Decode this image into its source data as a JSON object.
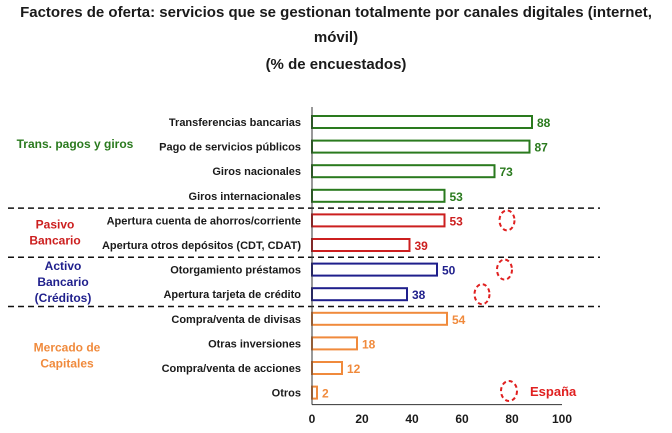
{
  "title_line1": "Factores de oferta: servicios que se gestionan totalmente por canales digitales (internet,",
  "title_line2": "móvil)",
  "subtitle": "(% de encuestados)",
  "colors": {
    "green": "#2a7a1e",
    "red": "#cc1f1f",
    "blue": "#1f1f8c",
    "orange": "#f08a3c",
    "spain": "#e02020"
  },
  "chart_data": {
    "type": "bar",
    "orientation": "horizontal",
    "xlim": [
      0,
      100
    ],
    "xticks": [
      0,
      20,
      40,
      60,
      80,
      100
    ],
    "grid": false,
    "legend": "España",
    "groups": [
      {
        "name": "Trans. pagos y giros",
        "color": "green",
        "items": [
          {
            "label": "Transferencias bancarias",
            "value": 88
          },
          {
            "label": "Pago de servicios públicos",
            "value": 87
          },
          {
            "label": "Giros nacionales",
            "value": 73
          },
          {
            "label": "Giros internacionales",
            "value": 53
          }
        ]
      },
      {
        "name": "Pasivo Bancario",
        "color": "red",
        "items": [
          {
            "label": "Apertura cuenta de ahorros/corriente",
            "value": 53,
            "spain": 78
          },
          {
            "label": "Apertura otros depósitos (CDT, CDAT)",
            "value": 39
          }
        ]
      },
      {
        "name": "Activo Bancario (Créditos)",
        "color": "blue",
        "items": [
          {
            "label": "Otorgamiento préstamos",
            "value": 50,
            "spain": 77
          },
          {
            "label": "Apertura tarjeta de crédito",
            "value": 38,
            "spain": 68
          }
        ]
      },
      {
        "name": "Mercado de Capitales",
        "color": "orange",
        "items": [
          {
            "label": "Compra/venta de divisas",
            "value": 54
          },
          {
            "label": "Otras inversiones",
            "value": 18
          },
          {
            "label": "Compra/venta de acciones",
            "value": 12
          },
          {
            "label": "Otros",
            "value": 2
          }
        ]
      }
    ]
  }
}
